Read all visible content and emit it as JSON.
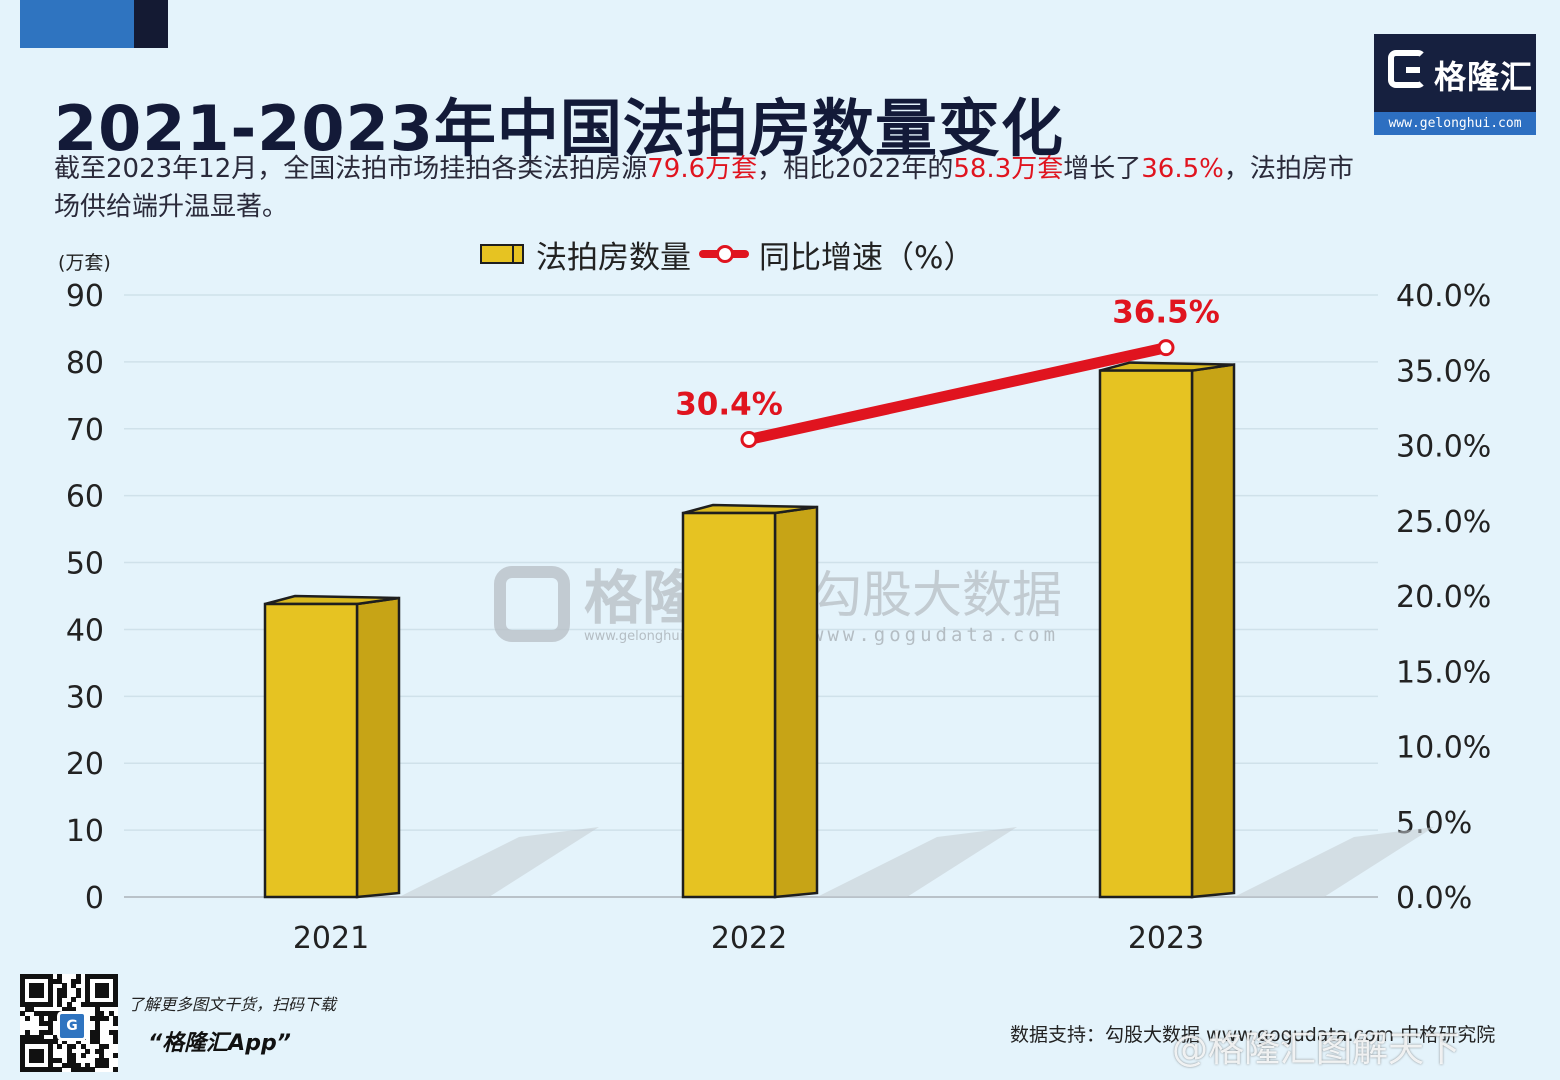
{
  "title": "2021-2023年中国法拍房数量变化",
  "subtitle": {
    "part1": "截至2023年12月，全国法拍市场挂拍各类法拍房源",
    "hl1": "79.6万套",
    "part2": "，相比2022年的",
    "hl2": "58.3万套",
    "part3": "增长了",
    "hl3": "36.5%",
    "part4": "，法拍房市场供给端升温显著。"
  },
  "logo": {
    "name": "格隆汇",
    "url": "www.gelonghui.com"
  },
  "watermark": {
    "brand1": "格隆汇",
    "url1": "www.gelonghui.com",
    "brand2": "勾股大数据",
    "url2": "www.gogudata.com"
  },
  "footer": {
    "promo_line1": "了解更多图文干货，扫码下载",
    "promo_line2": "“格隆汇App”",
    "source": "数据支持：勾股大数据 www.gogudata.com 中格研究院",
    "weibo": "@格隆汇图解天下"
  },
  "chart_data": {
    "type": "bar",
    "categories": [
      "2021",
      "2022",
      "2023"
    ],
    "y_unit": "(万套)",
    "ylim": [
      0,
      90
    ],
    "y_ticks": [
      "0",
      "10",
      "20",
      "30",
      "40",
      "50",
      "60",
      "70",
      "80",
      "90"
    ],
    "y2lim": [
      0,
      40
    ],
    "y2_ticks": [
      "0.0%",
      "5.0%",
      "10.0%",
      "15.0%",
      "20.0%",
      "25.0%",
      "30.0%",
      "35.0%",
      "40.0%"
    ],
    "grid": true,
    "legend_position": "top-center",
    "series": [
      {
        "name": "法拍房数量",
        "type": "bar",
        "axis": "left",
        "values": [
          44.7,
          58.3,
          79.6
        ],
        "color": "#e6c322"
      },
      {
        "name": "同比增速（%）",
        "type": "line",
        "axis": "right",
        "values": [
          null,
          30.4,
          36.5
        ],
        "labels": [
          "",
          "30.4%",
          "36.5%"
        ],
        "color": "#e0141f"
      }
    ]
  }
}
